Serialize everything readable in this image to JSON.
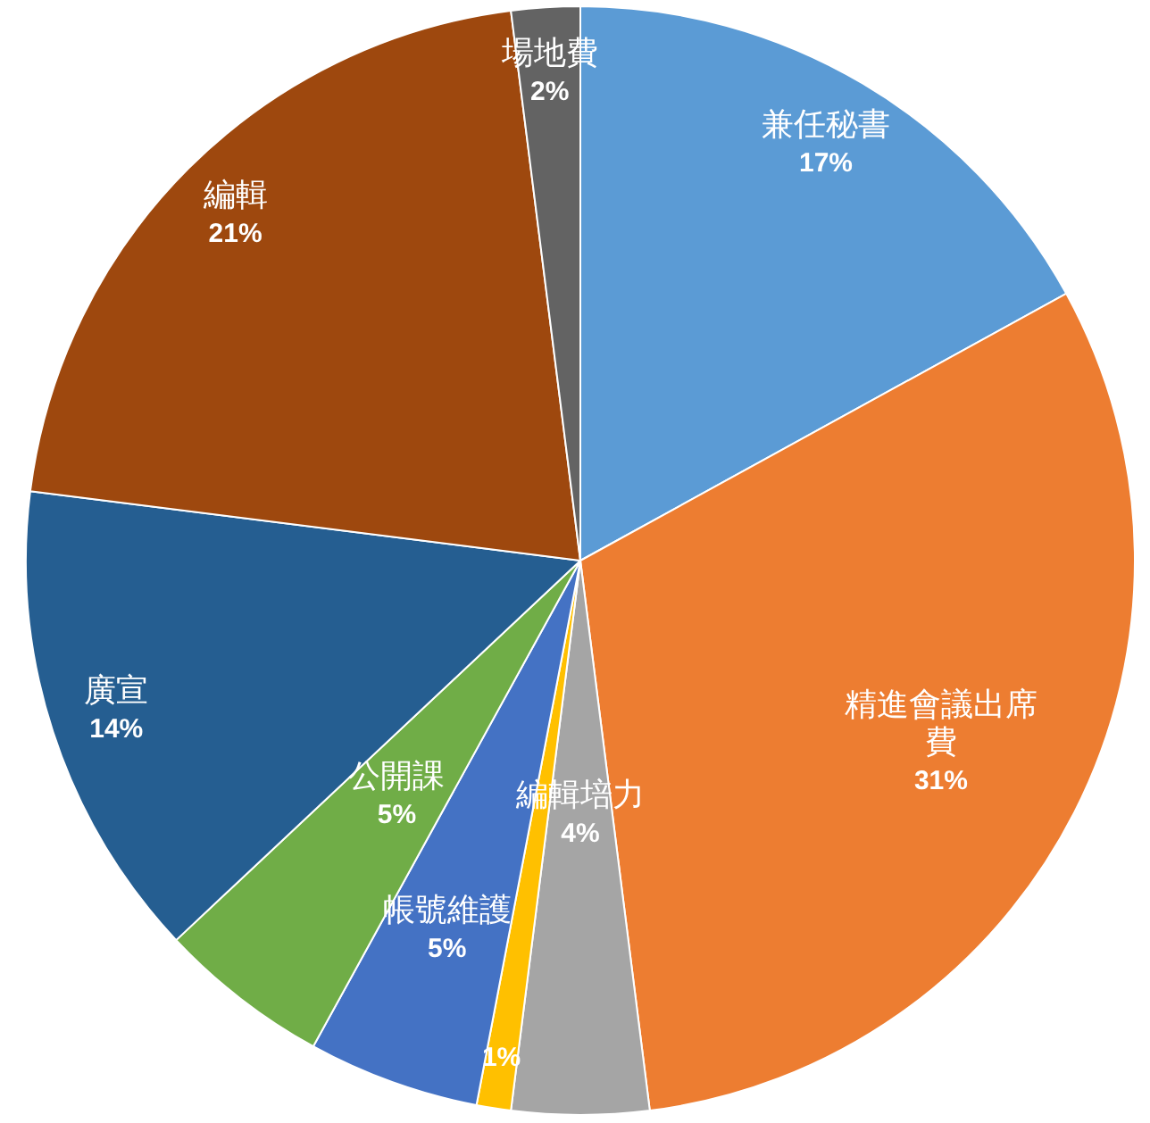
{
  "chart_data": {
    "type": "pie",
    "categories": [
      "兼任秘書",
      "精進會議出席費",
      "編輯培力",
      null,
      "帳號維護",
      "公開課",
      "廣宣",
      "編輯",
      "場地費"
    ],
    "values": [
      17,
      31,
      4,
      1,
      5,
      5,
      14,
      21,
      2
    ],
    "value_labels": [
      "17%",
      "31%",
      "4%",
      "1%",
      "5%",
      "5%",
      "14%",
      "21%",
      "2%"
    ],
    "colors": [
      "#5b9bd5",
      "#ed7d31",
      "#a5a5a5",
      "#ffc000",
      "#4472c4",
      "#70ad47",
      "#255e91",
      "#9e480e",
      "#636363"
    ],
    "legend": false
  }
}
